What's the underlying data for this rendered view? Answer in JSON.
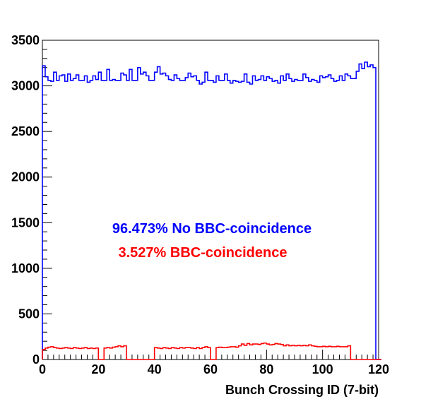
{
  "chart_data": {
    "type": "histogram",
    "title": "",
    "xlabel": "Bunch Crossing ID (7-bit)",
    "ylabel": "",
    "xlim": [
      0,
      120
    ],
    "ylim": [
      0,
      3500
    ],
    "x_ticks": [
      0,
      20,
      40,
      60,
      80,
      100,
      120
    ],
    "y_ticks": [
      0,
      500,
      1000,
      1500,
      2000,
      2500,
      3000,
      3500
    ],
    "grid": false,
    "legend": null,
    "bin_width": 1,
    "colors": {
      "no_bbc": "#0000ff",
      "bbc": "#ff0000",
      "axis": "#000000"
    },
    "annotations": [
      {
        "text": "96.473% No BBC-coincidence",
        "color": "#0000ff"
      },
      {
        "text": "3.527% BBC-coincidence",
        "color": "#ff0000"
      }
    ],
    "series": [
      {
        "name": "No BBC-coincidence",
        "color": "#0000ff",
        "values": [
          3220,
          3100,
          3060,
          3050,
          3150,
          3060,
          3110,
          3120,
          3050,
          3130,
          3060,
          3080,
          3120,
          3060,
          3060,
          3110,
          3040,
          3060,
          3110,
          3070,
          3150,
          3060,
          3060,
          3180,
          3060,
          3070,
          3060,
          3060,
          3140,
          3120,
          3060,
          3180,
          3060,
          3060,
          3200,
          3130,
          3150,
          3110,
          3060,
          3060,
          3150,
          3210,
          3130,
          3140,
          3110,
          3070,
          3060,
          3120,
          3080,
          3060,
          3060,
          3090,
          3140,
          3100,
          3110,
          3060,
          3020,
          3040,
          3150,
          3060,
          3060,
          3040,
          3110,
          3060,
          3060,
          3130,
          3060,
          3030,
          3060,
          3050,
          3040,
          3050,
          3130,
          3040,
          3020,
          3110,
          3060,
          3070,
          3110,
          3060,
          3100,
          3080,
          3050,
          3060,
          3030,
          3110,
          3060,
          3130,
          3080,
          3050,
          3070,
          3060,
          3060,
          3130,
          3090,
          3050,
          3070,
          3060,
          3040,
          3110,
          3090,
          3100,
          3120,
          3080,
          3050,
          3060,
          3110,
          3060,
          3130,
          3110,
          3080,
          3080,
          3160,
          3240,
          3190,
          3260,
          3210,
          3230,
          3200,
          0,
          0
        ]
      },
      {
        "name": "BBC-coincidence",
        "color": "#ff0000",
        "values": [
          110,
          125,
          135,
          140,
          130,
          125,
          120,
          125,
          130,
          125,
          120,
          130,
          125,
          120,
          125,
          130,
          120,
          125,
          120,
          125,
          0,
          0,
          125,
          130,
          125,
          135,
          140,
          150,
          140,
          150,
          0,
          0,
          0,
          0,
          0,
          0,
          0,
          0,
          0,
          0,
          130,
          125,
          120,
          130,
          125,
          120,
          130,
          125,
          120,
          130,
          125,
          130,
          130,
          125,
          120,
          130,
          120,
          130,
          140,
          130,
          0,
          0,
          130,
          135,
          130,
          130,
          135,
          140,
          140,
          135,
          150,
          170,
          155,
          175,
          160,
          170,
          170,
          165,
          175,
          180,
          170,
          160,
          165,
          175,
          170,
          165,
          150,
          160,
          150,
          155,
          150,
          155,
          150,
          155,
          150,
          160,
          150,
          145,
          140,
          140,
          145,
          140,
          145,
          140,
          140,
          145,
          140,
          140,
          140,
          150,
          0,
          0,
          0,
          0,
          0,
          0,
          0,
          0,
          0,
          0,
          0
        ]
      }
    ]
  }
}
